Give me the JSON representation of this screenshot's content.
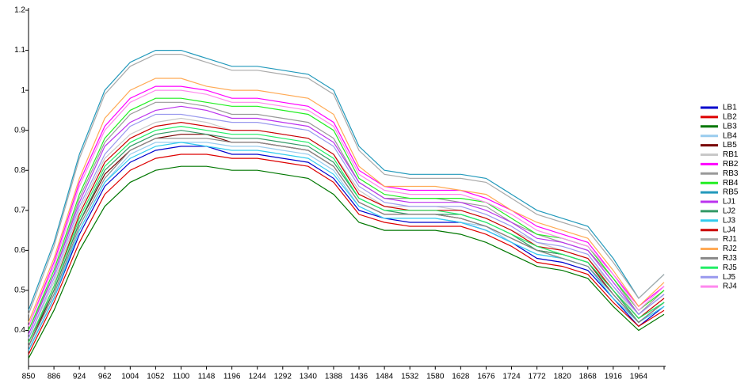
{
  "chart_data": {
    "type": "line",
    "categories": [
      "850",
      "886",
      "924",
      "962",
      "1004",
      "1052",
      "1100",
      "1148",
      "1196",
      "1244",
      "1292",
      "1340",
      "1388",
      "1436",
      "1484",
      "1532",
      "1580",
      "1628",
      "1676",
      "1724",
      "1772",
      "1820",
      "1868",
      "1916",
      "1964",
      null
    ],
    "ylim": [
      0.31,
      1.2
    ],
    "yticks": [
      0.4,
      0.5,
      0.6,
      0.7,
      0.8,
      0.9,
      1,
      1.1,
      1.2
    ],
    "grid": false,
    "legend": "right",
    "series": [
      {
        "name": "LB1",
        "color": "#0000cc",
        "values": [
          0.35,
          0.48,
          0.64,
          0.76,
          0.82,
          0.85,
          0.86,
          0.86,
          0.84,
          0.84,
          0.83,
          0.82,
          0.78,
          0.7,
          0.68,
          0.67,
          0.67,
          0.67,
          0.65,
          0.62,
          0.58,
          0.57,
          0.55,
          0.48,
          0.41,
          0.46
        ]
      },
      {
        "name": "LB2",
        "color": "#dd0000",
        "values": [
          0.34,
          0.47,
          0.62,
          0.74,
          0.8,
          0.83,
          0.84,
          0.84,
          0.83,
          0.83,
          0.82,
          0.81,
          0.77,
          0.69,
          0.67,
          0.66,
          0.66,
          0.66,
          0.64,
          0.61,
          0.57,
          0.56,
          0.54,
          0.47,
          0.41,
          0.45
        ]
      },
      {
        "name": "LB3",
        "color": "#007700",
        "values": [
          0.33,
          0.45,
          0.6,
          0.71,
          0.77,
          0.8,
          0.81,
          0.81,
          0.8,
          0.8,
          0.79,
          0.78,
          0.74,
          0.67,
          0.65,
          0.65,
          0.65,
          0.64,
          0.62,
          0.59,
          0.56,
          0.55,
          0.53,
          0.46,
          0.4,
          0.44
        ]
      },
      {
        "name": "LB4",
        "color": "#99ccee",
        "values": [
          0.36,
          0.49,
          0.65,
          0.77,
          0.84,
          0.87,
          0.87,
          0.87,
          0.86,
          0.86,
          0.85,
          0.84,
          0.8,
          0.71,
          0.68,
          0.68,
          0.68,
          0.67,
          0.66,
          0.62,
          0.59,
          0.58,
          0.56,
          0.49,
          0.42,
          0.46
        ]
      },
      {
        "name": "LB5",
        "color": "#770000",
        "values": [
          0.36,
          0.5,
          0.67,
          0.79,
          0.85,
          0.88,
          0.89,
          0.89,
          0.87,
          0.87,
          0.86,
          0.85,
          0.81,
          0.72,
          0.69,
          0.69,
          0.69,
          0.68,
          0.66,
          0.63,
          0.6,
          0.59,
          0.57,
          0.49,
          0.42,
          0.47
        ]
      },
      {
        "name": "RB1",
        "color": "#c8c8c8",
        "values": [
          0.38,
          0.52,
          0.7,
          0.83,
          0.89,
          0.92,
          0.93,
          0.92,
          0.9,
          0.9,
          0.89,
          0.88,
          0.84,
          0.75,
          0.71,
          0.71,
          0.71,
          0.7,
          0.68,
          0.65,
          0.62,
          0.6,
          0.58,
          0.51,
          0.43,
          0.48
        ]
      },
      {
        "name": "RB2",
        "color": "#ff00ff",
        "values": [
          0.41,
          0.57,
          0.77,
          0.91,
          0.98,
          1.01,
          1.01,
          1.0,
          0.98,
          0.98,
          0.97,
          0.96,
          0.92,
          0.8,
          0.76,
          0.75,
          0.75,
          0.75,
          0.73,
          0.7,
          0.66,
          0.64,
          0.62,
          0.54,
          0.46,
          0.51
        ]
      },
      {
        "name": "RB3",
        "color": "#999999",
        "values": [
          0.4,
          0.54,
          0.73,
          0.87,
          0.94,
          0.97,
          0.97,
          0.96,
          0.94,
          0.94,
          0.93,
          0.92,
          0.88,
          0.77,
          0.73,
          0.73,
          0.73,
          0.72,
          0.71,
          0.67,
          0.64,
          0.62,
          0.6,
          0.53,
          0.44,
          0.5
        ]
      },
      {
        "name": "RB4",
        "color": "#22ee22",
        "values": [
          0.4,
          0.55,
          0.74,
          0.88,
          0.95,
          0.98,
          0.98,
          0.97,
          0.96,
          0.96,
          0.95,
          0.94,
          0.9,
          0.78,
          0.74,
          0.73,
          0.73,
          0.73,
          0.72,
          0.68,
          0.64,
          0.63,
          0.61,
          0.53,
          0.45,
          0.5
        ]
      },
      {
        "name": "RB5",
        "color": "#2299bb",
        "values": [
          0.45,
          0.62,
          0.84,
          1.0,
          1.07,
          1.1,
          1.1,
          1.08,
          1.06,
          1.06,
          1.05,
          1.04,
          1.0,
          0.86,
          0.8,
          0.79,
          0.79,
          0.79,
          0.78,
          0.74,
          0.7,
          0.68,
          0.66,
          0.58,
          0.48,
          0.54
        ]
      },
      {
        "name": "LJ1",
        "color": "#bb33ee",
        "values": [
          0.39,
          0.54,
          0.72,
          0.86,
          0.92,
          0.95,
          0.96,
          0.95,
          0.93,
          0.93,
          0.92,
          0.91,
          0.87,
          0.77,
          0.73,
          0.72,
          0.72,
          0.72,
          0.7,
          0.67,
          0.63,
          0.62,
          0.6,
          0.52,
          0.44,
          0.49
        ]
      },
      {
        "name": "LJ2",
        "color": "#339966",
        "values": [
          0.37,
          0.5,
          0.67,
          0.8,
          0.86,
          0.89,
          0.9,
          0.89,
          0.88,
          0.88,
          0.87,
          0.86,
          0.82,
          0.73,
          0.7,
          0.69,
          0.69,
          0.69,
          0.67,
          0.64,
          0.6,
          0.59,
          0.57,
          0.5,
          0.42,
          0.47
        ]
      },
      {
        "name": "LJ3",
        "color": "#33ccee",
        "values": [
          0.35,
          0.48,
          0.65,
          0.77,
          0.83,
          0.86,
          0.87,
          0.86,
          0.85,
          0.85,
          0.84,
          0.83,
          0.79,
          0.71,
          0.68,
          0.68,
          0.68,
          0.67,
          0.65,
          0.62,
          0.59,
          0.58,
          0.56,
          0.48,
          0.42,
          0.46
        ]
      },
      {
        "name": "LJ4",
        "color": "#cc0000",
        "values": [
          0.37,
          0.51,
          0.69,
          0.82,
          0.88,
          0.91,
          0.92,
          0.91,
          0.9,
          0.9,
          0.89,
          0.88,
          0.84,
          0.74,
          0.71,
          0.7,
          0.7,
          0.7,
          0.68,
          0.65,
          0.61,
          0.6,
          0.58,
          0.5,
          0.43,
          0.48
        ]
      },
      {
        "name": "RJ1",
        "color": "#aaaaaa",
        "values": [
          0.44,
          0.61,
          0.83,
          0.99,
          1.06,
          1.09,
          1.09,
          1.07,
          1.05,
          1.05,
          1.04,
          1.03,
          0.99,
          0.85,
          0.79,
          0.78,
          0.78,
          0.78,
          0.77,
          0.73,
          0.69,
          0.67,
          0.65,
          0.57,
          0.48,
          0.54
        ]
      },
      {
        "name": "RJ2",
        "color": "#ffaa55",
        "values": [
          0.42,
          0.58,
          0.78,
          0.93,
          1.0,
          1.03,
          1.03,
          1.01,
          1.0,
          1.0,
          0.99,
          0.98,
          0.94,
          0.81,
          0.76,
          0.76,
          0.76,
          0.75,
          0.74,
          0.7,
          0.67,
          0.65,
          0.63,
          0.55,
          0.46,
          0.52
        ]
      },
      {
        "name": "RJ3",
        "color": "#888888",
        "values": [
          0.36,
          0.49,
          0.66,
          0.78,
          0.85,
          0.88,
          0.88,
          0.88,
          0.87,
          0.87,
          0.86,
          0.85,
          0.81,
          0.72,
          0.69,
          0.69,
          0.69,
          0.68,
          0.66,
          0.63,
          0.6,
          0.58,
          0.56,
          0.49,
          0.42,
          0.47
        ]
      },
      {
        "name": "RJ5",
        "color": "#22ee66",
        "values": [
          0.37,
          0.51,
          0.68,
          0.81,
          0.87,
          0.9,
          0.91,
          0.9,
          0.89,
          0.89,
          0.88,
          0.87,
          0.83,
          0.73,
          0.7,
          0.7,
          0.7,
          0.69,
          0.67,
          0.64,
          0.61,
          0.59,
          0.57,
          0.5,
          0.43,
          0.47
        ]
      },
      {
        "name": "LJ5",
        "color": "#9999ee",
        "values": [
          0.38,
          0.53,
          0.71,
          0.84,
          0.91,
          0.94,
          0.94,
          0.93,
          0.92,
          0.92,
          0.91,
          0.9,
          0.86,
          0.76,
          0.72,
          0.71,
          0.71,
          0.71,
          0.69,
          0.66,
          0.62,
          0.61,
          0.59,
          0.51,
          0.44,
          0.49
        ]
      },
      {
        "name": "RJ4",
        "color": "#ff88ee",
        "values": [
          0.41,
          0.56,
          0.76,
          0.9,
          0.97,
          1.0,
          1.0,
          0.99,
          0.97,
          0.97,
          0.96,
          0.95,
          0.91,
          0.79,
          0.75,
          0.74,
          0.74,
          0.74,
          0.72,
          0.69,
          0.65,
          0.63,
          0.61,
          0.54,
          0.45,
          0.51
        ]
      }
    ]
  }
}
